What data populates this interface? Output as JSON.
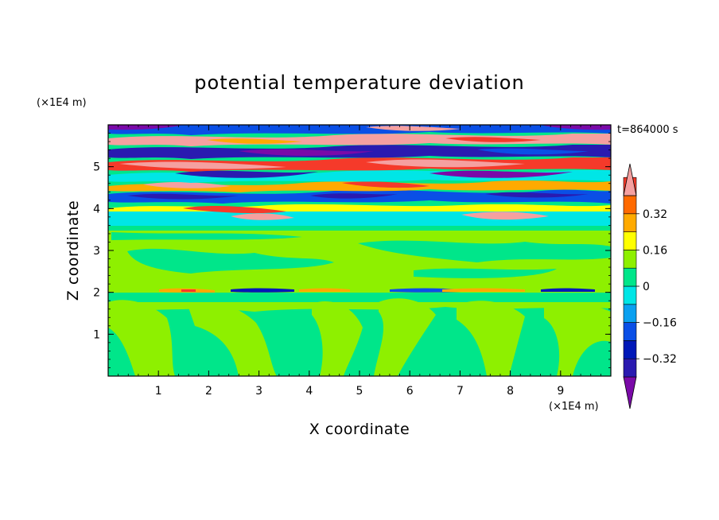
{
  "chart_data": {
    "type": "heatmap",
    "title": "potential temperature deviation",
    "xlabel": "X coordinate",
    "ylabel": "Z coordinate",
    "x_unit": "(×1E4 m)",
    "y_unit": "(×1E4 m)",
    "time_label": "t=864000 s",
    "xlim": [
      0,
      10
    ],
    "ylim": [
      0,
      6
    ],
    "x_ticks": [
      "1",
      "2",
      "3",
      "4",
      "5",
      "6",
      "7",
      "8",
      "9"
    ],
    "y_ticks": [
      "1",
      "2",
      "3",
      "4",
      "5"
    ],
    "colorbar": {
      "levels": [
        -0.48,
        -0.4,
        -0.32,
        -0.24,
        -0.16,
        -0.08,
        0,
        0.08,
        0.16,
        0.24,
        0.32,
        0.4,
        0.48
      ],
      "colors": [
        "#7a0aa8",
        "#2a1ab0",
        "#0018b8",
        "#0a4fe6",
        "#0aa0f0",
        "#00e6e6",
        "#00e68a",
        "#8ef000",
        "#ffff00",
        "#ffaa00",
        "#ff6a00",
        "#f53a2a",
        "#f5a0a0"
      ],
      "labels": [
        "-0.32",
        "-0.16",
        "0",
        "0.16",
        "0.32"
      ],
      "label_values": [
        -0.32,
        -0.16,
        0,
        0.16,
        0.32
      ],
      "extend": "both"
    },
    "regions": [
      {
        "z_range": [
          0,
          2.0
        ],
        "description": "weak deviations -0.08 to 0.08, plume-like structures"
      },
      {
        "z_range": [
          2.0,
          2.1
        ],
        "description": "thin inversion layer with mixed small positive/negative values"
      },
      {
        "z_range": [
          2.1,
          3.5
        ],
        "description": "weak positive deviations 0 to 0.08"
      },
      {
        "z_range": [
          3.5,
          3.9
        ],
        "description": "slightly negative deviations around -0.08"
      },
      {
        "z_range": [
          3.9,
          6.0
        ],
        "description": "strong banded oscillations between about -0.48 and 0.48"
      }
    ]
  }
}
